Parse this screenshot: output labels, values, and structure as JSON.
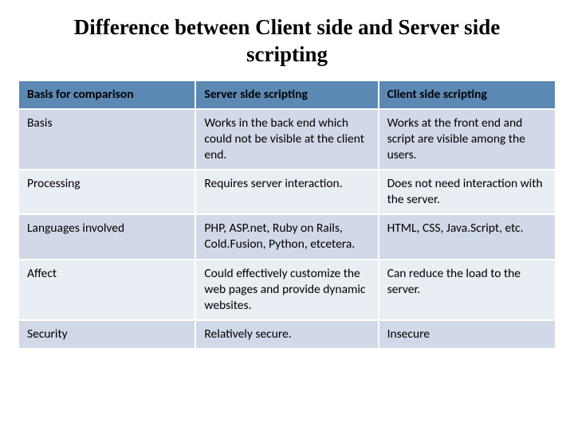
{
  "title": "Difference between Client side and Server side scripting",
  "table": {
    "type": "table",
    "columns": [
      "Basis for comparison",
      "Server side scripting",
      "Client side scripting"
    ],
    "rows": [
      [
        "Basis",
        "Works in the back end which could not be visible at the client end.",
        "Works at the front end and script are visible among the users."
      ],
      [
        "Processing",
        "Requires server interaction.",
        "Does not need interaction with the server."
      ],
      [
        "Languages involved",
        "PHP, ASP.net, Ruby on Rails, Cold.Fusion, Python, etcetera.",
        "HTML, CSS, Java.Script, etc."
      ],
      [
        "Affect",
        "Could effectively customize the web pages and provide dynamic websites.",
        "Can reduce the load to the server."
      ],
      [
        "Security",
        "Relatively secure.",
        "Insecure"
      ]
    ],
    "header_bg": "#5b89b4",
    "band_colors": [
      "#d1d9e8",
      "#e9edf4"
    ],
    "border_color": "#ffffff",
    "border_width": 2,
    "text_color": "#000000",
    "header_text_color": "#000000",
    "body_fontsize": 15.5,
    "header_fontsize": 15.5,
    "column_widths_pct": [
      33,
      34,
      33
    ]
  },
  "title_font": {
    "family": "Times New Roman",
    "size": 27,
    "weight": "bold",
    "color": "#000000"
  },
  "background_color": "#ffffff"
}
